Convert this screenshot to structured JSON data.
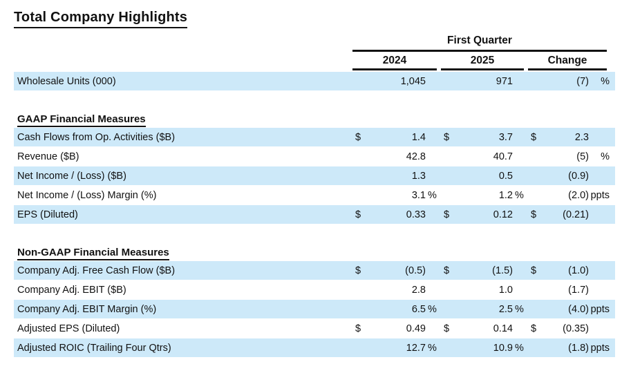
{
  "page_title": "Total Company Highlights",
  "colors": {
    "row_highlight": "#cde9f9",
    "rule": "#111111",
    "text": "#111111"
  },
  "table": {
    "group_header": "First Quarter",
    "columns": [
      "2024",
      "2025",
      "Change"
    ],
    "rows": [
      {
        "type": "data",
        "shaded": true,
        "label": "Wholesale Units (000)",
        "d1": "",
        "v1": "1,045",
        "s1": "",
        "d2": "",
        "v2": "971",
        "s2": "",
        "d3": "",
        "v3": "(7)",
        "s3": "%"
      },
      {
        "type": "spacer"
      },
      {
        "type": "section",
        "label": "GAAP Financial Measures"
      },
      {
        "type": "data",
        "shaded": true,
        "label": "Cash Flows from Op. Activities ($B)",
        "d1": "$",
        "v1": "1.4",
        "s1": "",
        "d2": "$",
        "v2": "3.7",
        "s2": "",
        "d3": "$",
        "v3": "2.3",
        "s3": ""
      },
      {
        "type": "data",
        "shaded": false,
        "label": "Revenue ($B)",
        "d1": "",
        "v1": "42.8",
        "s1": "",
        "d2": "",
        "v2": "40.7",
        "s2": "",
        "d3": "",
        "v3": "(5)",
        "s3": "%"
      },
      {
        "type": "data",
        "shaded": true,
        "label": "Net Income / (Loss) ($B)",
        "d1": "",
        "v1": "1.3",
        "s1": "",
        "d2": "",
        "v2": "0.5",
        "s2": "",
        "d3": "",
        "v3": "(0.9)",
        "s3": ""
      },
      {
        "type": "data",
        "shaded": false,
        "label": "Net Income / (Loss) Margin (%)",
        "d1": "",
        "v1": "3.1",
        "s1": "%",
        "d2": "",
        "v2": "1.2",
        "s2": "%",
        "d3": "",
        "v3": "(2.0)",
        "s3": "ppts"
      },
      {
        "type": "data",
        "shaded": true,
        "label": "EPS (Diluted)",
        "d1": "$",
        "v1": "0.33",
        "s1": "",
        "d2": "$",
        "v2": "0.12",
        "s2": "",
        "d3": "$",
        "v3": "(0.21)",
        "s3": ""
      },
      {
        "type": "spacer"
      },
      {
        "type": "section",
        "label": "Non-GAAP Financial Measures"
      },
      {
        "type": "data",
        "shaded": true,
        "label": "Company Adj. Free Cash Flow ($B)",
        "d1": "$",
        "v1": "(0.5)",
        "s1": "",
        "d2": "$",
        "v2": "(1.5)",
        "s2": "",
        "d3": "$",
        "v3": "(1.0)",
        "s3": ""
      },
      {
        "type": "data",
        "shaded": false,
        "label": "Company Adj. EBIT ($B)",
        "d1": "",
        "v1": "2.8",
        "s1": "",
        "d2": "",
        "v2": "1.0",
        "s2": "",
        "d3": "",
        "v3": "(1.7)",
        "s3": ""
      },
      {
        "type": "data",
        "shaded": true,
        "label": "Company Adj. EBIT Margin (%)",
        "d1": "",
        "v1": "6.5",
        "s1": "%",
        "d2": "",
        "v2": "2.5",
        "s2": "%",
        "d3": "",
        "v3": "(4.0)",
        "s3": "ppts"
      },
      {
        "type": "data",
        "shaded": false,
        "label": "Adjusted EPS (Diluted)",
        "d1": "$",
        "v1": "0.49",
        "s1": "",
        "d2": "$",
        "v2": "0.14",
        "s2": "",
        "d3": "$",
        "v3": "(0.35)",
        "s3": ""
      },
      {
        "type": "data",
        "shaded": true,
        "label": "Adjusted ROIC (Trailing Four Qtrs)",
        "d1": "",
        "v1": "12.7",
        "s1": "%",
        "d2": "",
        "v2": "10.9",
        "s2": "%",
        "d3": "",
        "v3": "(1.8)",
        "s3": "ppts"
      }
    ]
  }
}
